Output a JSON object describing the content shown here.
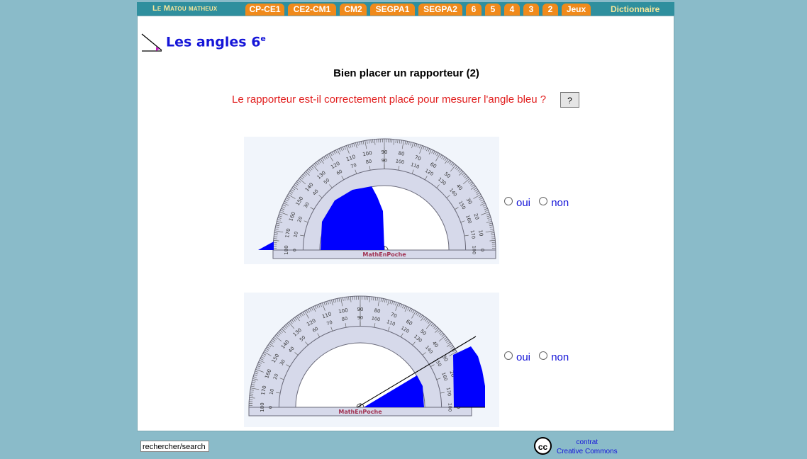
{
  "nav": {
    "brand": "Le Matou matheux",
    "tabs": [
      "CP-CE1",
      "CE2-CM1",
      "CM2",
      "SEGPA1",
      "SEGPA2",
      "6",
      "5",
      "4",
      "3",
      "2",
      "Jeux"
    ],
    "dictionary": "Dictionnaire"
  },
  "page": {
    "title": "Les angles 6",
    "title_sup": "e",
    "subtitle": "Bien placer un rapporteur (2)",
    "question": "Le rapporteur est-il correctement placé pour mesurer l'angle bleu ?",
    "help": "?"
  },
  "protractor": {
    "brand": "MathEnPoche",
    "labels_outer": [
      "180",
      "170",
      "160",
      "150",
      "140",
      "130",
      "120",
      "110",
      "100",
      "90",
      "80",
      "70",
      "60",
      "50",
      "40",
      "30",
      "20",
      "10",
      "0"
    ],
    "labels_inner": [
      "0",
      "10",
      "20",
      "30",
      "40",
      "50",
      "60",
      "70",
      "80",
      "90",
      "100",
      "110",
      "120",
      "130",
      "140",
      "150",
      "160",
      "170",
      "180"
    ]
  },
  "options": {
    "yes": "oui",
    "no": "non"
  },
  "footer": {
    "search_placeholder": "rechercher/search",
    "cc_icon": "cc",
    "cc_line1": "contrat",
    "cc_line2": "Creative Commons"
  },
  "colors": {
    "nav_bg": "#2f8f9e",
    "tab_bg": "#f08a1b",
    "accent_blue": "#0000ff",
    "question_red": "#e11d1d"
  }
}
